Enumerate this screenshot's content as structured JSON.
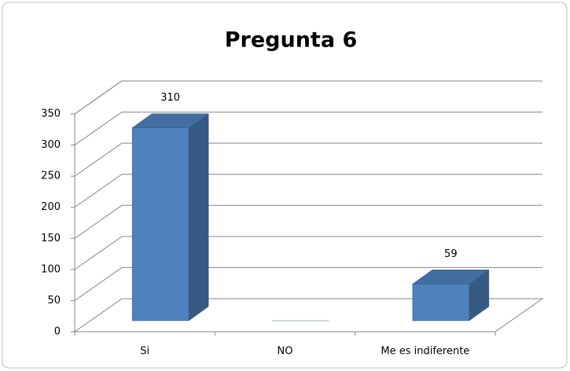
{
  "chart_data": {
    "type": "bar3d",
    "title": "Pregunta 6",
    "categories": [
      "Si",
      "NO",
      "Me es indiferente"
    ],
    "values": [
      310,
      0,
      59
    ],
    "color": "#4f81bd",
    "ylim": [
      0,
      350
    ],
    "yticks": [
      0,
      50,
      100,
      150,
      200,
      250,
      300,
      350
    ],
    "grid": true
  }
}
